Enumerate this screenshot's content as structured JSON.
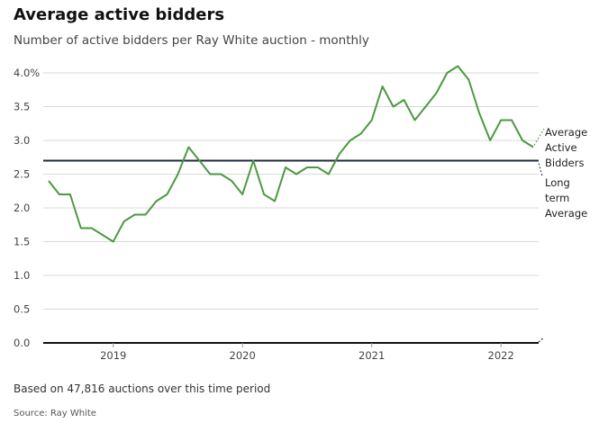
{
  "title": "Average active bidders",
  "subtitle": "Number of active bidders per Ray White auction - monthly",
  "footnote": "Based on 47,816 auctions over this time period",
  "source": "Source: Ray White",
  "colors": {
    "series": "#4a9a3f",
    "reference": "#1f2a3d",
    "zero": "#111111",
    "grid": "#d9d9d9"
  },
  "chart_data": {
    "type": "line",
    "title": "Average active bidders",
    "subtitle": "Number of active bidders per Ray White auction - monthly",
    "xlabel": "",
    "ylabel": "",
    "ylim": [
      0,
      4.0
    ],
    "xlim": [
      "2018-07",
      "2022-04"
    ],
    "y_ticks": [
      "0.0",
      "0.5",
      "1.0",
      "1.5",
      "2.0",
      "2.5",
      "3.0",
      "3.5",
      "4.0%"
    ],
    "y_tick_values": [
      0,
      0.5,
      1.0,
      1.5,
      2.0,
      2.5,
      3.0,
      3.5,
      4.0
    ],
    "x_ticks": [
      "2019",
      "2020",
      "2021",
      "2022"
    ],
    "x_tick_values": [
      "2019-01",
      "2020-01",
      "2021-01",
      "2022-01"
    ],
    "grid": true,
    "series": [
      {
        "name": "Average Active Bidders",
        "x": [
          "2018-07",
          "2018-08",
          "2018-09",
          "2018-10",
          "2018-11",
          "2018-12",
          "2019-01",
          "2019-02",
          "2019-03",
          "2019-04",
          "2019-05",
          "2019-06",
          "2019-07",
          "2019-08",
          "2019-09",
          "2019-10",
          "2019-11",
          "2019-12",
          "2020-01",
          "2020-02",
          "2020-03",
          "2020-04",
          "2020-05",
          "2020-06",
          "2020-07",
          "2020-08",
          "2020-09",
          "2020-10",
          "2020-11",
          "2020-12",
          "2021-01",
          "2021-02",
          "2021-03",
          "2021-04",
          "2021-05",
          "2021-06",
          "2021-07",
          "2021-08",
          "2021-09",
          "2021-10",
          "2021-11",
          "2021-12",
          "2022-01",
          "2022-02",
          "2022-03",
          "2022-04"
        ],
        "values": [
          2.4,
          2.2,
          2.2,
          1.7,
          1.7,
          1.6,
          1.5,
          1.8,
          1.9,
          1.9,
          2.1,
          2.2,
          2.5,
          2.9,
          2.7,
          2.5,
          2.5,
          2.4,
          2.2,
          2.7,
          2.2,
          2.1,
          2.6,
          2.5,
          2.6,
          2.6,
          2.5,
          2.8,
          3.0,
          3.1,
          3.3,
          3.8,
          3.5,
          3.6,
          3.3,
          3.5,
          3.7,
          4.0,
          4.1,
          3.9,
          3.4,
          3.0,
          3.3,
          3.3,
          3.0,
          2.9
        ]
      },
      {
        "name": "Long term Average",
        "x": [
          "2018-07",
          "2022-04"
        ],
        "values": [
          2.7,
          2.7
        ]
      }
    ],
    "annotations": [
      {
        "lines": [
          "Average",
          "Active",
          "Bidders"
        ],
        "series": "Average Active Bidders"
      },
      {
        "lines": [
          "Long",
          "term",
          "Average"
        ],
        "series": "Long term Average"
      }
    ]
  }
}
